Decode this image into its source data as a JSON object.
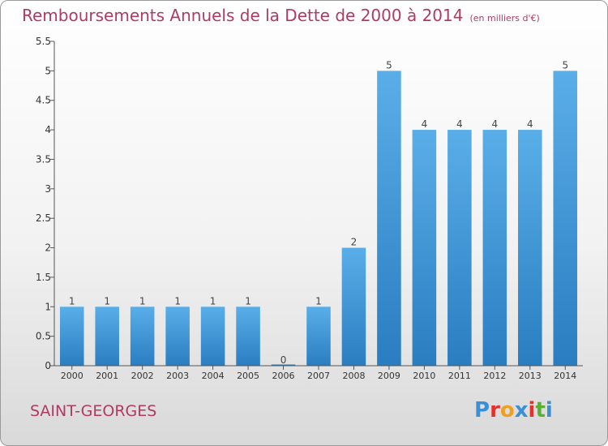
{
  "header": {
    "title": "Remboursements Annuels de la Dette de 2000 à 2014",
    "unit": "(en milliers d'€)"
  },
  "commune": "SAINT-GEORGES",
  "logo": {
    "text": "Proxiti",
    "colors": [
      "#3a8fd6",
      "#e8302a",
      "#f0a020",
      "#3a8fd6",
      "#e8302a",
      "#5ab030",
      "#3a8fd6"
    ]
  },
  "chart_data": {
    "type": "bar",
    "categories": [
      "2000",
      "2001",
      "2002",
      "2003",
      "2004",
      "2005",
      "2006",
      "2007",
      "2008",
      "2009",
      "2010",
      "2011",
      "2012",
      "2013",
      "2014"
    ],
    "values": [
      1,
      1,
      1,
      1,
      1,
      1,
      0,
      1,
      2,
      5,
      4,
      4,
      4,
      4,
      5
    ],
    "data_labels": [
      "1",
      "1",
      "1",
      "1",
      "1",
      "1",
      "0",
      "1",
      "2",
      "5",
      "4",
      "4",
      "4",
      "4",
      "5"
    ],
    "yticks": [
      "0",
      "0.5",
      "1",
      "1.5",
      "2",
      "2.5",
      "3",
      "3.5",
      "4",
      "4.5",
      "5",
      "5.5"
    ],
    "ylim": [
      0,
      5.5
    ],
    "grid": false,
    "colors": {
      "bar_light": "#5aaee8",
      "bar_dark": "#2a7dc0",
      "axis": "#555555"
    }
  }
}
